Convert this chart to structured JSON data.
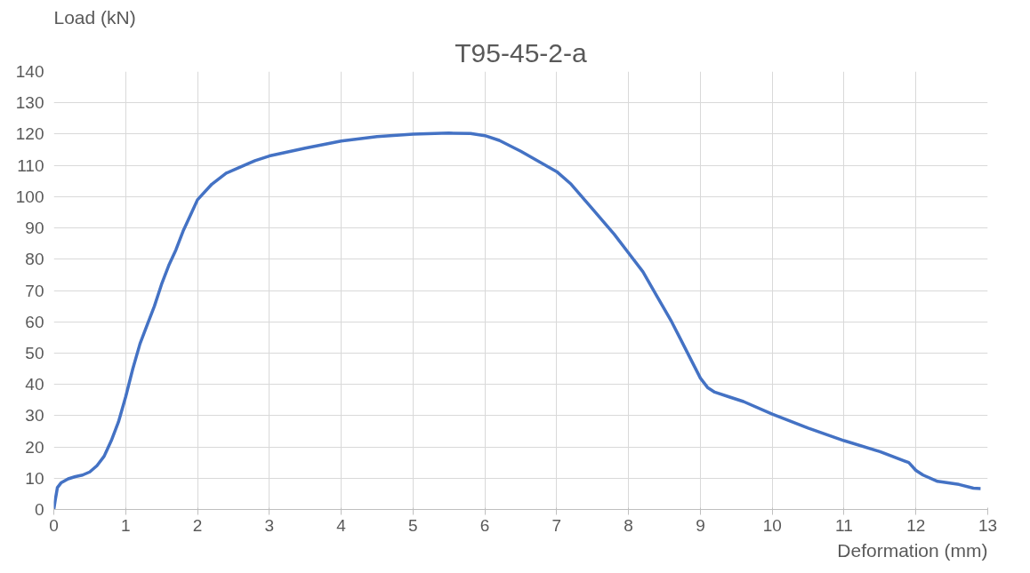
{
  "chart_data": {
    "type": "line",
    "title": "T95-45-2-a",
    "xlabel": "Deformation (mm)",
    "ylabel": "Load (kN)",
    "xlim": [
      0,
      13
    ],
    "xticks": [
      0,
      1,
      2,
      3,
      4,
      5,
      6,
      7,
      8,
      9,
      10,
      11,
      12,
      13
    ],
    "ylim": [
      0,
      140
    ],
    "yticks": [
      0,
      10,
      20,
      30,
      40,
      50,
      60,
      70,
      80,
      90,
      100,
      110,
      120,
      130,
      140
    ],
    "grid": true,
    "line_style": "solid",
    "marker": "none",
    "series": [
      {
        "color": "#4472c4",
        "x": [
          0,
          0.02,
          0.05,
          0.1,
          0.2,
          0.3,
          0.4,
          0.5,
          0.6,
          0.7,
          0.8,
          0.9,
          1.0,
          1.1,
          1.2,
          1.3,
          1.4,
          1.5,
          1.6,
          1.7,
          1.8,
          1.9,
          2.0,
          2.2,
          2.4,
          2.6,
          2.8,
          3.0,
          3.5,
          4.0,
          4.5,
          5.0,
          5.5,
          5.8,
          6.0,
          6.2,
          6.5,
          7.0,
          7.2,
          7.5,
          7.8,
          8.0,
          8.2,
          8.4,
          8.6,
          8.8,
          9.0,
          9.1,
          9.2,
          9.4,
          9.6,
          10.0,
          10.5,
          11.0,
          11.5,
          11.9,
          12.0,
          12.1,
          12.3,
          12.6,
          12.8,
          12.9
        ],
        "values": [
          0,
          3,
          7,
          8.5,
          9.8,
          10.5,
          11,
          12,
          14,
          17,
          22,
          28,
          36,
          45,
          53,
          59,
          65,
          72,
          78,
          83,
          89,
          94,
          99,
          104,
          107.5,
          109.5,
          111.5,
          113,
          115.5,
          117.8,
          119.2,
          120,
          120.3,
          120.2,
          119.5,
          118,
          114.5,
          108,
          104,
          96,
          88,
          82,
          76,
          68,
          60,
          51,
          42,
          39,
          37.5,
          36,
          34.5,
          30.5,
          26,
          22,
          18.5,
          15,
          12.5,
          11,
          9,
          8,
          6.8,
          6.7
        ]
      }
    ]
  }
}
